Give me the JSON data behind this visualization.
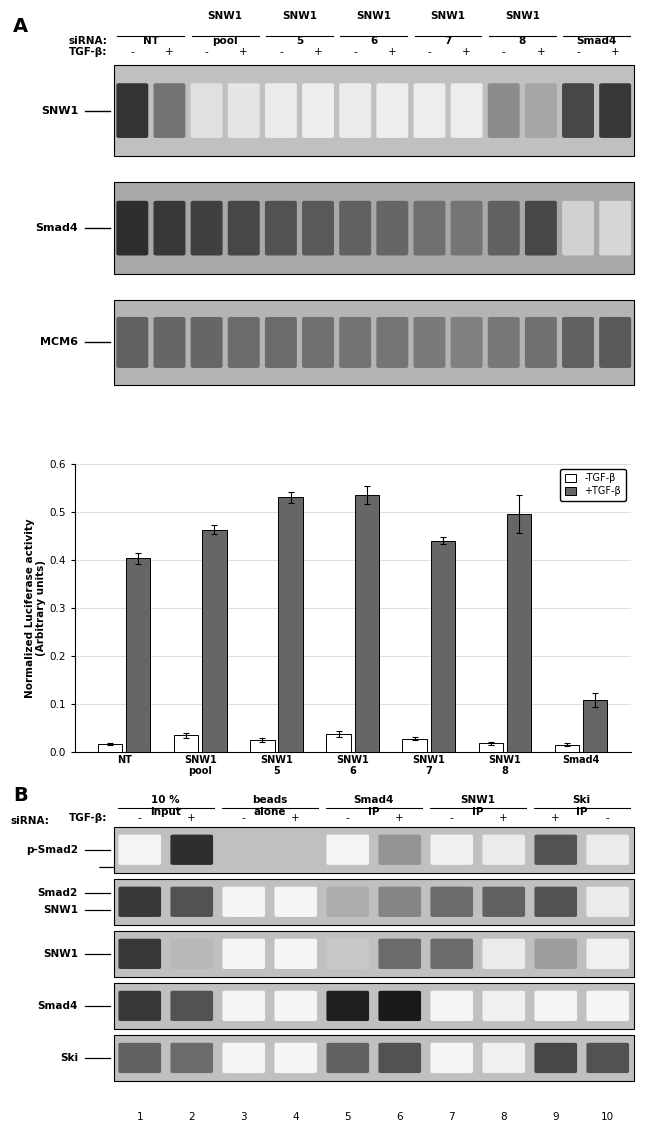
{
  "bar_groups": [
    "NT",
    "SNW1\npool",
    "SNW1\n5",
    "SNW1\n6",
    "SNW1\n7",
    "SNW1\n8",
    "Smad4"
  ],
  "neg_values": [
    0.017,
    0.035,
    0.025,
    0.038,
    0.028,
    0.018,
    0.015
  ],
  "neg_errors": [
    0.003,
    0.005,
    0.004,
    0.006,
    0.003,
    0.003,
    0.003
  ],
  "pos_values": [
    0.403,
    0.463,
    0.53,
    0.535,
    0.44,
    0.495,
    0.108
  ],
  "pos_errors": [
    0.012,
    0.01,
    0.012,
    0.018,
    0.007,
    0.04,
    0.015
  ],
  "ylabel": "Normalized Luciferase activity\n(Arbitrary units)",
  "ylim": [
    0,
    0.6
  ],
  "yticks": [
    0.0,
    0.1,
    0.2,
    0.3,
    0.4,
    0.5,
    0.6
  ],
  "color_neg": "#ffffff",
  "color_pos": "#666666",
  "legend_neg": "-TGF-β",
  "legend_pos": "+TGF-β",
  "panel_A_wb_labels": [
    "SNW1",
    "Smad4",
    "MCM6"
  ],
  "panel_B_col_headers": [
    "10 %\ninput",
    "beads\nalone",
    "Smad4\nIP",
    "SNW1\nIP",
    "Ski\nIP"
  ],
  "panel_B_tgf_labels": [
    "-",
    "+",
    "-",
    "+",
    "-",
    "+",
    "-",
    "+",
    "+",
    "-"
  ],
  "panel_B_wb_labels": [
    "p-Smad2",
    "Smad2 —\nSNW1 —",
    "SNW1",
    "Smad4",
    "Ski"
  ],
  "panel_B_wb_labels_left": [
    "p-Smad2",
    "Smad2\nSNW1",
    "SNW1",
    "Smad4",
    "Ski"
  ],
  "panel_B_lane_numbers": [
    "1",
    "2",
    "3",
    "4",
    "5",
    "6",
    "7",
    "8",
    "9",
    "10"
  ],
  "snw1_A_darkness": [
    0.8,
    0.55,
    0.12,
    0.1,
    0.08,
    0.07,
    0.08,
    0.07,
    0.07,
    0.07,
    0.45,
    0.35,
    0.72,
    0.78
  ],
  "smad4_A_darkness": [
    0.82,
    0.78,
    0.75,
    0.72,
    0.68,
    0.65,
    0.62,
    0.6,
    0.56,
    0.54,
    0.62,
    0.72,
    0.18,
    0.16
  ],
  "mcm6_A_darkness": [
    0.62,
    0.6,
    0.6,
    0.58,
    0.58,
    0.56,
    0.55,
    0.54,
    0.52,
    0.5,
    0.53,
    0.56,
    0.62,
    0.65
  ],
  "pSmad2_B_dk": [
    0.04,
    0.82,
    0.03,
    0.03,
    0.04,
    0.42,
    0.06,
    0.08,
    0.68,
    0.08
  ],
  "smad2snw1_B_dk": [
    0.78,
    0.68,
    0.04,
    0.04,
    0.32,
    0.48,
    0.58,
    0.62,
    0.68,
    0.08
  ],
  "snw1_B_dk": [
    0.78,
    0.28,
    0.04,
    0.04,
    0.22,
    0.58,
    0.58,
    0.08,
    0.38,
    0.06
  ],
  "smad4_B_dk": [
    0.78,
    0.68,
    0.04,
    0.04,
    0.88,
    0.9,
    0.04,
    0.06,
    0.04,
    0.04
  ],
  "ski_B_dk": [
    0.62,
    0.58,
    0.04,
    0.04,
    0.62,
    0.68,
    0.04,
    0.06,
    0.72,
    0.68
  ]
}
